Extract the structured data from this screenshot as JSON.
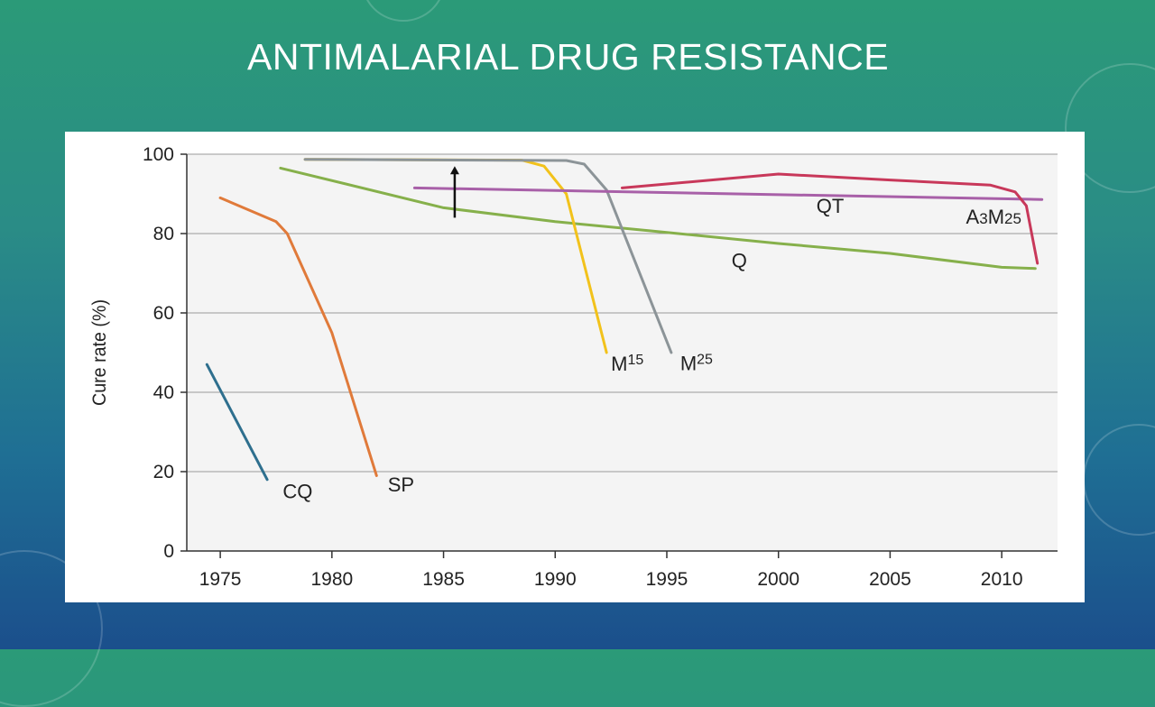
{
  "slide": {
    "title": "ANTIMALARIAL DRUG RESISTANCE"
  },
  "chart_data": {
    "type": "line",
    "title": "",
    "ylabel": "Cure rate (%)",
    "xlabel": "",
    "xlim": [
      1973.5,
      2012.5
    ],
    "ylim": [
      0,
      100
    ],
    "xticks": [
      1975,
      1980,
      1985,
      1990,
      1995,
      2000,
      2005,
      2010
    ],
    "yticks": [
      0,
      20,
      40,
      60,
      80,
      100
    ],
    "series": [
      {
        "name": "CQ",
        "color": "#2e6f8e",
        "points": [
          [
            1974.4,
            47
          ],
          [
            1977.1,
            18
          ]
        ]
      },
      {
        "name": "SP",
        "color": "#e07a3a",
        "points": [
          [
            1975.0,
            89
          ],
          [
            1977.5,
            83
          ],
          [
            1978.0,
            80
          ],
          [
            1980.0,
            55
          ],
          [
            1982.0,
            19
          ]
        ]
      },
      {
        "name": "Q",
        "color": "#86b04b",
        "points": [
          [
            1977.7,
            96.5
          ],
          [
            1985,
            86.5
          ],
          [
            1990,
            83
          ],
          [
            1995,
            80.3
          ],
          [
            2000,
            77.5
          ],
          [
            2005,
            75
          ],
          [
            2010,
            71.5
          ],
          [
            2011.5,
            71.2
          ]
        ]
      },
      {
        "name": "M15",
        "color": "#f2c21b",
        "points": [
          [
            1978.8,
            98.7
          ],
          [
            1988.5,
            98.5
          ],
          [
            1989.5,
            97
          ],
          [
            1990.5,
            90
          ],
          [
            1992.3,
            50
          ]
        ]
      },
      {
        "name": "M25",
        "color": "#8c9498",
        "points": [
          [
            1978.8,
            98.7
          ],
          [
            1990.5,
            98.4
          ],
          [
            1991.3,
            97.5
          ],
          [
            1992.3,
            91
          ],
          [
            1995.2,
            50
          ]
        ]
      },
      {
        "name": "QT",
        "color": "#a860a8",
        "points": [
          [
            1983.7,
            91.5
          ],
          [
            2011.8,
            88.6
          ]
        ]
      },
      {
        "name": "A3M25",
        "color": "#c8385a",
        "points": [
          [
            1993.0,
            91.5
          ],
          [
            2000.0,
            95.0
          ],
          [
            2005.0,
            93.5
          ],
          [
            2009.5,
            92.2
          ],
          [
            2010.6,
            90.5
          ],
          [
            2011.1,
            87
          ],
          [
            2011.6,
            72.5
          ]
        ]
      }
    ],
    "arrow": {
      "x": 1985.5,
      "from": 84,
      "to": 97
    },
    "labels": [
      {
        "text": "CQ",
        "x": 1977.8,
        "y": 13.3
      },
      {
        "text": "SP",
        "x": 1982.5,
        "y": 15.0
      },
      {
        "text": "Q",
        "x": 1997.9,
        "y": 71.5
      },
      {
        "text": "M",
        "sup": "15",
        "x": 1992.5,
        "y": 45.4
      },
      {
        "text": "M",
        "sup": "25",
        "x": 1995.6,
        "y": 45.6
      },
      {
        "text": "QT",
        "x": 2001.7,
        "y": 85.2
      },
      {
        "text": "A",
        "sub1": "3",
        "mid": "M",
        "sub2": "25",
        "x": 2008.4,
        "y": 82.5
      }
    ]
  }
}
